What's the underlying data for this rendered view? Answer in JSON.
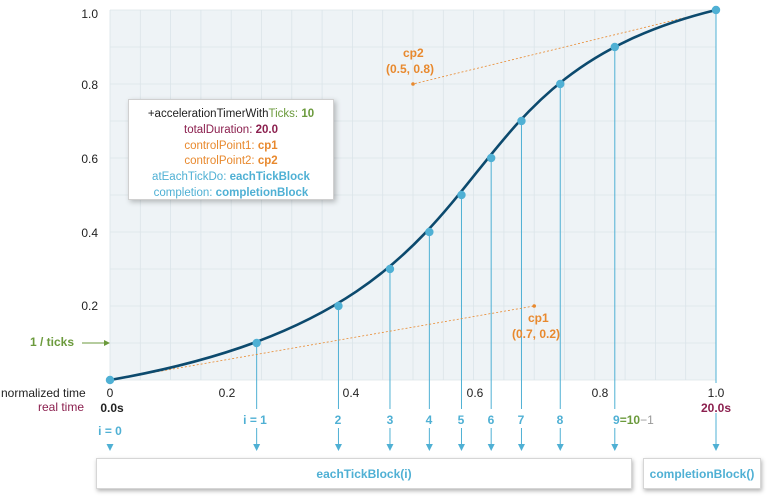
{
  "chart_data": {
    "type": "line",
    "curve": "cubic-bezier",
    "x_axis_label": "normalized time",
    "real_time_label": "real time",
    "x_ticks": [
      "0",
      "0.2",
      "0.4",
      "0.6",
      "0.8",
      "1.0"
    ],
    "y_ticks": [
      "0.2",
      "0.4",
      "0.6",
      "0.8",
      "1.0"
    ],
    "xlim": [
      0,
      1
    ],
    "ylim": [
      0,
      1
    ],
    "grid": true,
    "start_point": [
      0,
      0
    ],
    "end_point": [
      1,
      1
    ],
    "control_points": [
      {
        "name": "cp1",
        "label": "cp1",
        "coords_label": "(0.7, 0.2)",
        "x": 0.7,
        "y": 0.2
      },
      {
        "name": "cp2",
        "label": "cp2",
        "coords_label": "(0.5, 0.8)",
        "x": 0.5,
        "y": 0.8
      }
    ],
    "tick_points": [
      {
        "label": "i = 1",
        "x": 0.242,
        "y": 0.1
      },
      {
        "label": "2",
        "x": 0.377,
        "y": 0.2
      },
      {
        "label": "3",
        "x": 0.462,
        "y": 0.3
      },
      {
        "label": "4",
        "x": 0.527,
        "y": 0.4
      },
      {
        "label": "5",
        "x": 0.58,
        "y": 0.5
      },
      {
        "label": "6",
        "x": 0.629,
        "y": 0.6
      },
      {
        "label": "7",
        "x": 0.679,
        "y": 0.7
      },
      {
        "label": "8",
        "x": 0.743,
        "y": 0.8
      },
      {
        "label": "9",
        "x": 0.833,
        "y": 0.9
      }
    ],
    "ticks_marker_label": "1 / ticks",
    "ticks_marker_value": 0.1,
    "start_real_time": "0.0s",
    "end_real_time": "20.0s",
    "start_index_label": "i = 0",
    "end_normalized_label": "1.0",
    "last_index_suffix": "=10−1",
    "last_index_suffix_green": "10",
    "last_index_suffix_gray": "−1"
  },
  "colors": {
    "curve": "#0c4a6e",
    "point": "#4fb0d4",
    "guide": "#4fb0d4",
    "control": "#e8892e",
    "ticks_marker": "#6b9a3c",
    "real_time": "#8b1f4e",
    "grid": "#dbe4e9",
    "plot_bg": "#eef3f6"
  },
  "codebox": {
    "line1_a": "+accelerationTimerWith",
    "line1_b": "Ticks:",
    "line1_c": "10",
    "line2_a": "totalDuration:",
    "line2_b": "20.0",
    "line3_a": "controlPoint1:",
    "line3_b": "cp1",
    "line4_a": "controlPoint2:",
    "line4_b": "cp2",
    "line5_a": "atEachTickDo:",
    "line5_b": "eachTickBlock",
    "line6_a": "completion:",
    "line6_b": "completionBlock"
  },
  "blocks": {
    "each_tick": "eachTickBlock(i)",
    "completion": "completionBlock()"
  }
}
